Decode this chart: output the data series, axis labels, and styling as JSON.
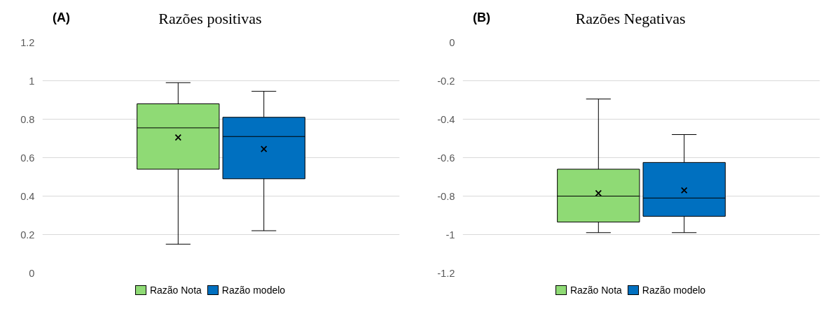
{
  "chart_data": [
    {
      "type": "box",
      "title": "Razões positivas",
      "annotations": [
        "(A)"
      ],
      "categories": [
        null
      ],
      "ylim": [
        0,
        1.2
      ],
      "yticks": [
        0,
        0.2,
        0.4,
        0.6,
        0.8,
        1,
        1.2
      ],
      "grid": "y",
      "legend": "bottom",
      "marker": "cross",
      "series": [
        {
          "name": "Razão Nota",
          "color": "#8fda75",
          "boxes": [
            {
              "low": 0.15,
              "q1": 0.54,
              "median": 0.755,
              "q3": 0.88,
              "high": 0.99,
              "mean": 0.705
            }
          ]
        },
        {
          "name": "Razão modelo",
          "color": "#0070c0",
          "boxes": [
            {
              "low": 0.22,
              "q1": 0.49,
              "median": 0.71,
              "q3": 0.81,
              "high": 0.945,
              "mean": 0.645
            }
          ]
        }
      ]
    },
    {
      "type": "box",
      "title": "Razões Negativas",
      "annotations": [
        "(B)"
      ],
      "categories": [
        null
      ],
      "ylim": [
        -1.2,
        0
      ],
      "yticks": [
        -1.2,
        -1,
        -0.8,
        -0.6,
        -0.4,
        -0.2,
        0
      ],
      "grid": "y",
      "legend": "bottom",
      "marker": "cross",
      "series": [
        {
          "name": "Razão Nota",
          "color": "#8fda75",
          "boxes": [
            {
              "low": -0.99,
              "q1": -0.935,
              "median": -0.8,
              "q3": -0.66,
              "high": -0.295,
              "mean": -0.785
            }
          ]
        },
        {
          "name": "Razão modelo",
          "color": "#0070c0",
          "boxes": [
            {
              "low": -0.99,
              "q1": -0.905,
              "median": -0.81,
              "q3": -0.625,
              "high": -0.48,
              "mean": -0.77
            }
          ]
        }
      ]
    }
  ]
}
